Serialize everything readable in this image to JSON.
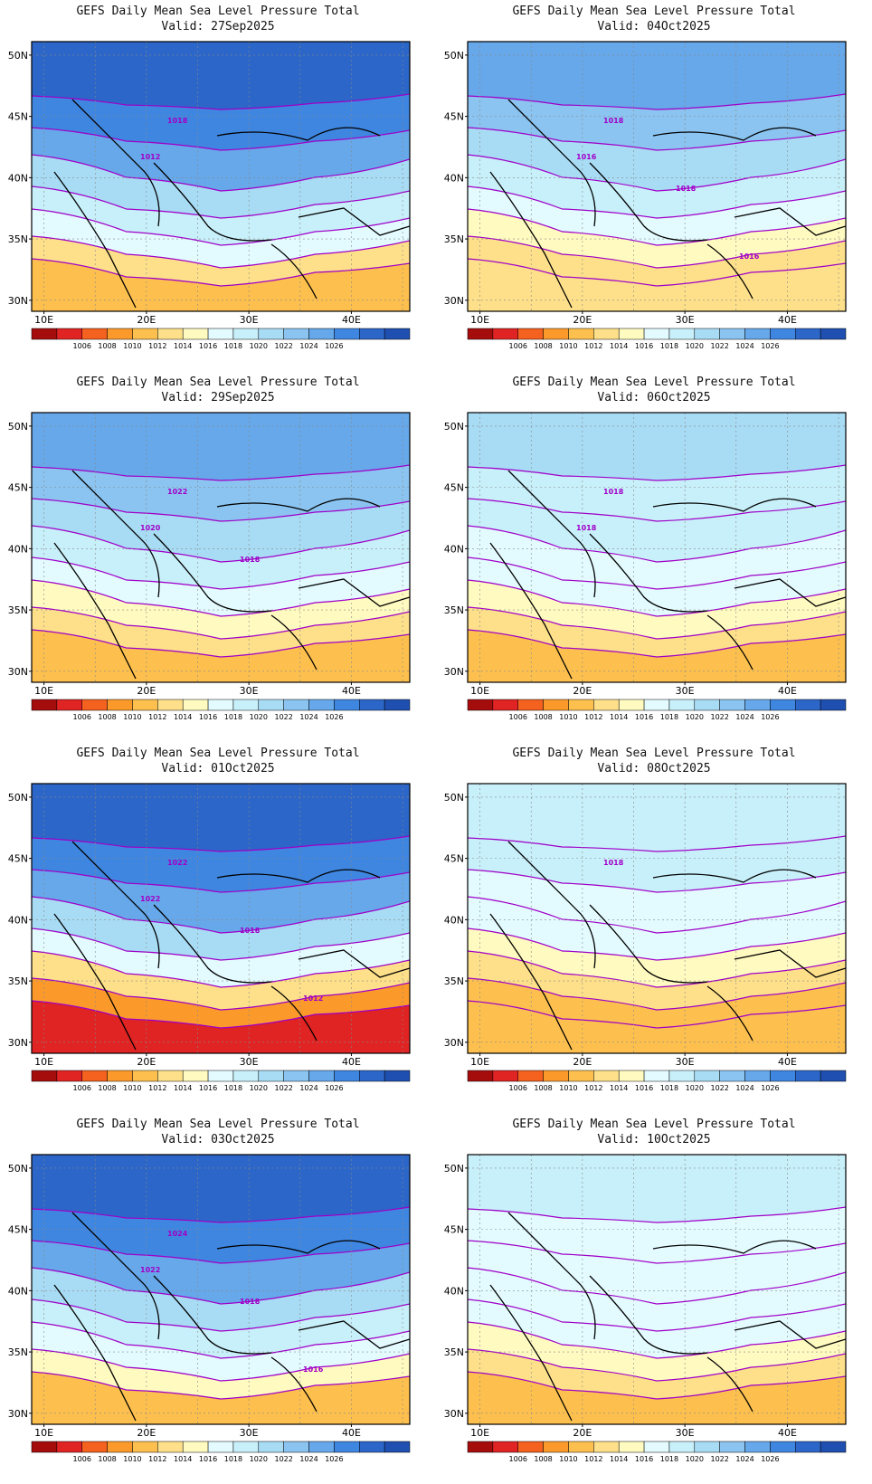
{
  "colors": {
    "palette": [
      "#a50d0d",
      "#e02323",
      "#f5611e",
      "#fb9a2b",
      "#fdc04e",
      "#fee08a",
      "#fffac0",
      "#e3fbff",
      "#c8f0fa",
      "#a8dcf5",
      "#8bc4f0",
      "#66a8ea",
      "#3f86e0",
      "#2b66c8",
      "#1f4fb0"
    ],
    "contour": "#a000c8",
    "coast": "#000000",
    "grid": "#888888"
  },
  "colorbar_labels": [
    "1006",
    "1008",
    "1010",
    "1012",
    "1014",
    "1016",
    "1018",
    "1020",
    "1022",
    "1024",
    "1026"
  ],
  "lat_labels": [
    "50N",
    "45N",
    "40N",
    "35N",
    "30N"
  ],
  "lon_labels": [
    "10E",
    "20E",
    "30E",
    "40E"
  ],
  "panels": [
    {
      "title": "GEFS Daily Mean Sea Level Pressure Total",
      "valid": "Valid: 27Sep2025",
      "band_colors": [
        13,
        12,
        11,
        9,
        8,
        7,
        5,
        4
      ],
      "isobars": [
        "1018",
        "1012"
      ]
    },
    {
      "title": "GEFS Daily Mean Sea Level Pressure Total",
      "valid": "Valid: 04Oct2025",
      "band_colors": [
        11,
        10,
        9,
        8,
        7,
        6,
        5,
        5
      ],
      "isobars": [
        "1018",
        "1016",
        "1018",
        "1016"
      ]
    },
    {
      "title": "GEFS Daily Mean Sea Level Pressure Total",
      "valid": "Valid: 29Sep2025",
      "band_colors": [
        11,
        10,
        9,
        8,
        7,
        6,
        5,
        4
      ],
      "isobars": [
        "1022",
        "1020",
        "1018"
      ]
    },
    {
      "title": "GEFS Daily Mean Sea Level Pressure Total",
      "valid": "Valid: 06Oct2025",
      "band_colors": [
        9,
        8,
        8,
        7,
        7,
        6,
        5,
        4
      ],
      "isobars": [
        "1018",
        "1018"
      ]
    },
    {
      "title": "GEFS Daily Mean Sea Level Pressure Total",
      "valid": "Valid: 01Oct2025",
      "band_colors": [
        13,
        12,
        11,
        9,
        7,
        5,
        3,
        1
      ],
      "isobars": [
        "1022",
        "1022",
        "1018",
        "1012"
      ]
    },
    {
      "title": "GEFS Daily Mean Sea Level Pressure Total",
      "valid": "Valid: 08Oct2025",
      "band_colors": [
        8,
        8,
        7,
        7,
        6,
        5,
        4,
        4
      ],
      "isobars": [
        "1018"
      ]
    },
    {
      "title": "GEFS Daily Mean Sea Level Pressure Total",
      "valid": "Valid: 03Oct2025",
      "band_colors": [
        13,
        12,
        11,
        9,
        8,
        7,
        6,
        4
      ],
      "isobars": [
        "1024",
        "1022",
        "1018",
        "1016"
      ]
    },
    {
      "title": "GEFS Daily Mean Sea Level Pressure Total",
      "valid": "Valid: 10Oct2025",
      "band_colors": [
        8,
        7,
        7,
        7,
        7,
        6,
        5,
        4
      ],
      "isobars": []
    }
  ]
}
